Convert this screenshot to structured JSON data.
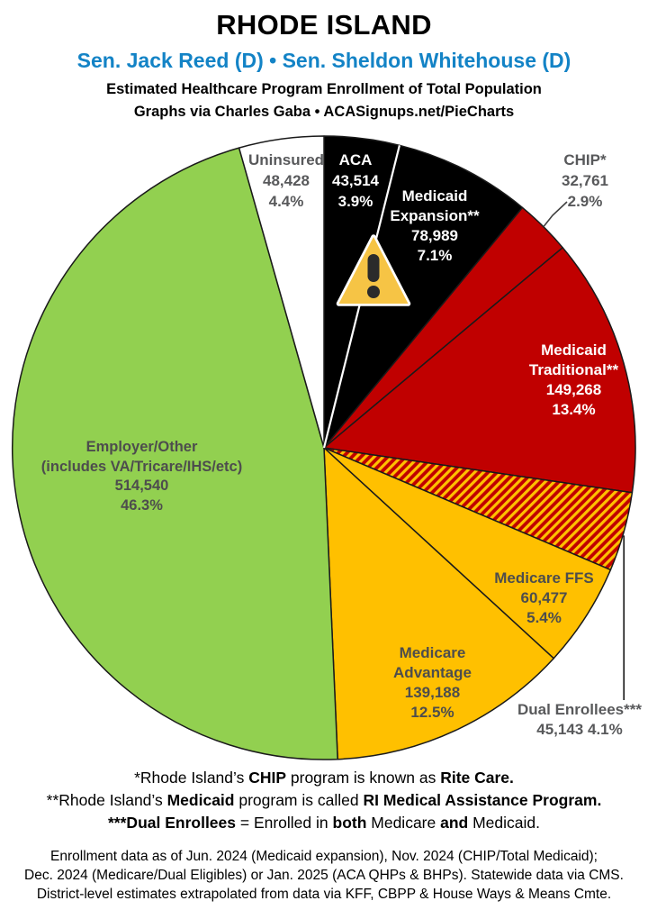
{
  "header": {
    "state": "RHODE ISLAND",
    "senators": "Sen. Jack Reed (D) • Sen. Sheldon Whitehouse (D)",
    "senators_color": "#1383C6",
    "subtitle_line1": "Estimated Healthcare Program Enrollment of Total Population",
    "subtitle_line2": "Graphs via Charles Gaba  •  ACASignups.net/PieCharts"
  },
  "chart_data": {
    "type": "pie",
    "title": "Estimated Healthcare Program Enrollment of Total Population",
    "start_angle_deg": 0,
    "direction": "clockwise",
    "outline_color": "#1a1a1a",
    "slices": [
      {
        "label": "ACA",
        "label_lines": [
          "ACA"
        ],
        "value": 43514,
        "value_label": "43,514",
        "pct": 3.9,
        "pct_label": "3.9%",
        "color": "#000000",
        "text_color": "#FFFFFF"
      },
      {
        "label": "Medicaid Expansion**",
        "label_lines": [
          "Medicaid",
          "Expansion**"
        ],
        "value": 78989,
        "value_label": "78,989",
        "pct": 7.1,
        "pct_label": "7.1%",
        "color": "#000000",
        "text_color": "#FFFFFF"
      },
      {
        "label": "CHIP*",
        "label_lines": [
          "CHIP*"
        ],
        "value": 32761,
        "value_label": "32,761",
        "pct": 2.9,
        "pct_label": "2.9%",
        "color": "#C00000",
        "text_color": "#58595B"
      },
      {
        "label": "Medicaid Traditional**",
        "label_lines": [
          "Medicaid",
          "Traditional**"
        ],
        "value": 149268,
        "value_label": "149,268",
        "pct": 13.4,
        "pct_label": "13.4%",
        "color": "#C00000",
        "text_color": "#FFFFFF"
      },
      {
        "label": "Dual Enrollees***",
        "label_lines": [
          "Dual Enrollees***"
        ],
        "value": 45143,
        "value_label": "45,143",
        "pct": 4.1,
        "pct_label": "4.1%",
        "color": "pattern:diagonal-stripes",
        "pattern_colors": [
          "#C00000",
          "#FFC000"
        ],
        "text_color": "#58595B"
      },
      {
        "label": "Medicare FFS",
        "label_lines": [
          "Medicare FFS"
        ],
        "value": 60477,
        "value_label": "60,477",
        "pct": 5.4,
        "pct_label": "5.4%",
        "color": "#FFC000",
        "text_color": "#4D4D4D"
      },
      {
        "label": "Medicare Advantage",
        "label_lines": [
          "Medicare",
          "Advantage"
        ],
        "value": 139188,
        "value_label": "139,188",
        "pct": 12.5,
        "pct_label": "12.5%",
        "color": "#FFC000",
        "text_color": "#4D4D4D"
      },
      {
        "label": "Employer/Other",
        "label_lines": [
          "Employer/Other",
          "(includes VA/Tricare/IHS/etc)"
        ],
        "value": 514540,
        "value_label": "514,540",
        "pct": 46.3,
        "pct_label": "46.3%",
        "color": "#92D050",
        "text_color": "#4D4D4D"
      },
      {
        "label": "Uninsured",
        "label_lines": [
          "Uninsured"
        ],
        "value": 48428,
        "value_label": "48,428",
        "pct": 4.4,
        "pct_label": "4.4%",
        "color": "#FFFFFF",
        "text_color": "#58595B"
      }
    ],
    "warning_icon_color": "#F6C445"
  },
  "footnotes": [
    [
      {
        "t": "*Rhode Island’s ",
        "b": false
      },
      {
        "t": "CHIP",
        "b": true
      },
      {
        "t": " program is known as ",
        "b": false
      },
      {
        "t": "Rite Care.",
        "b": true
      }
    ],
    [
      {
        "t": "**Rhode Island’s ",
        "b": false
      },
      {
        "t": "Medicaid",
        "b": true
      },
      {
        "t": " program is called ",
        "b": false
      },
      {
        "t": "RI Medical Assistance Program.",
        "b": true
      }
    ],
    [
      {
        "t": "***Dual Enrollees",
        "b": true
      },
      {
        "t": " = Enrolled in ",
        "b": false
      },
      {
        "t": "both",
        "b": true
      },
      {
        "t": " Medicare ",
        "b": false
      },
      {
        "t": "and",
        "b": true
      },
      {
        "t": " Medicaid.",
        "b": false
      }
    ]
  ],
  "source_lines": [
    "Enrollment data as of Jun. 2024 (Medicaid expansion), Nov. 2024 (CHIP/Total Medicaid);",
    "Dec. 2024 (Medicare/Dual Eligibles) or Jan. 2025 (ACA QHPs & BHPs). Statewide data via CMS.",
    "District-level estimates extrapolated from data via KFF, CBPP & House Ways & Means Cmte."
  ]
}
